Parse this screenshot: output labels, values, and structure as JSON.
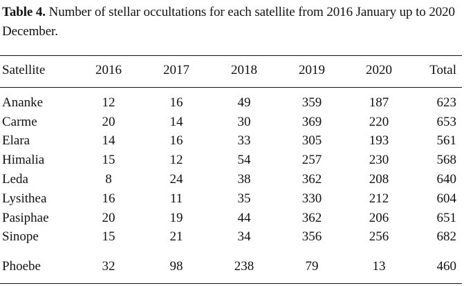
{
  "caption": {
    "label": "Table 4.",
    "text": "Number of stellar occultations for each satellite from 2016 January up to 2020 December."
  },
  "table": {
    "headers": [
      "Satellite",
      "2016",
      "2017",
      "2018",
      "2019",
      "2020",
      "Total"
    ],
    "rows": [
      [
        "Ananke",
        "12",
        "16",
        "49",
        "359",
        "187",
        "623"
      ],
      [
        "Carme",
        "20",
        "14",
        "30",
        "369",
        "220",
        "653"
      ],
      [
        "Elara",
        "14",
        "16",
        "33",
        "305",
        "193",
        "561"
      ],
      [
        "Himalia",
        "15",
        "12",
        "54",
        "257",
        "230",
        "568"
      ],
      [
        "Leda",
        "8",
        "24",
        "38",
        "362",
        "208",
        "640"
      ],
      [
        "Lysithea",
        "16",
        "11",
        "35",
        "330",
        "212",
        "604"
      ],
      [
        "Pasiphae",
        "20",
        "19",
        "44",
        "362",
        "206",
        "651"
      ],
      [
        "Sinope",
        "15",
        "21",
        "34",
        "356",
        "256",
        "682"
      ]
    ],
    "extra_row": [
      "Phoebe",
      "32",
      "98",
      "238",
      "79",
      "13",
      "460"
    ]
  }
}
